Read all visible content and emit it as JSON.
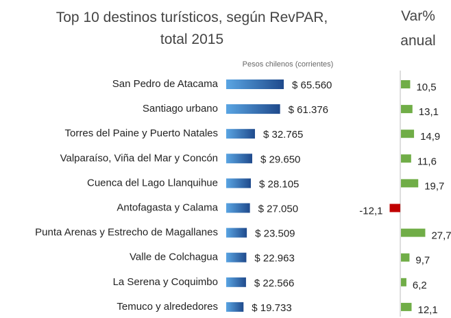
{
  "chart_data": [
    {
      "type": "hbar",
      "title": "Top 10 destinos turísticos, según RevPAR,\ntotal 2015",
      "x_label": "Pesos chilenos (corrientes)",
      "categories": [
        "San Pedro de Atacama",
        "Santiago urbano",
        "Torres del Paine y Puerto Natales",
        "Valparaíso, Viña del Mar y Concón",
        "Cuenca del Lago Llanquihue",
        "Antofagasta y Calama",
        "Punta Arenas y Estrecho de Magallanes",
        "Valle de Colchagua",
        "La Serena y Coquimbo",
        "Temuco y alrededores"
      ],
      "values": [
        65560,
        61376,
        32765,
        29650,
        28105,
        27050,
        23509,
        22963,
        22566,
        19733
      ],
      "value_labels": [
        "$ 65.560",
        "$ 61.376",
        "$ 32.765",
        "$ 29.650",
        "$ 28.105",
        "$ 27.050",
        "$ 23.509",
        "$ 22.963",
        "$ 22.566",
        "$ 19.733"
      ],
      "color": "#2f6db5"
    },
    {
      "type": "hbar",
      "title": "Var%\nanual",
      "values": [
        10.5,
        13.1,
        14.9,
        11.6,
        19.7,
        -12.1,
        27.7,
        9.7,
        6.2,
        12.1
      ],
      "value_labels": [
        "10,5",
        "13,1",
        "14,9",
        "11,6",
        "19,7",
        "-12,1",
        "27,7",
        "9,7",
        "6,2",
        "12,1"
      ],
      "color": "#70ad47",
      "negative_color": "#c00000"
    }
  ]
}
